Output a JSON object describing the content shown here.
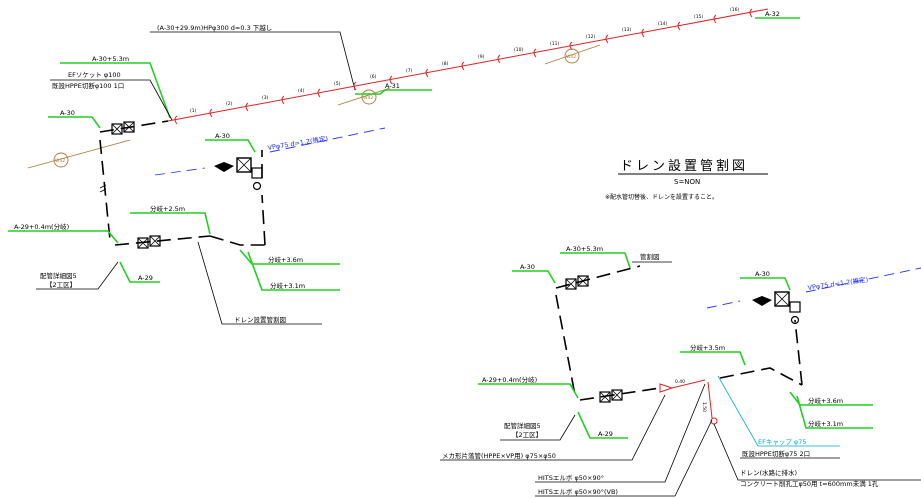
{
  "top_label": "(A-30+29.9m)HPφ300 d=0.3 下越し",
  "title": "ドレン設置管割図",
  "scale": "S=NON",
  "note": "※配水管切替後、ドレンを設置すること。",
  "main_pipe_numbers": [
    "(1)",
    "(2)",
    "(3)",
    "(4)",
    "(5)",
    "(6)",
    "(7)",
    "(8)",
    "(9)",
    "(10)",
    "(11)",
    "(12)",
    "(13)",
    "(14)",
    "(15)",
    "(16)"
  ],
  "W42": "W42",
  "left": {
    "a30_53": "A-30+5.3m",
    "ef_socket": "EFソケット φ100",
    "cut": "既設HPPE切断φ100 1口",
    "a30": "A-30",
    "a31": "A-31",
    "a32": "A-32",
    "a30_b": "A-30",
    "vp75": "VPφ75 d=1.2(推定)",
    "a29_04": "A-29+0.4m(分岐)",
    "bunki_25": "分岐+2.5m",
    "bunki_36": "分岐+3.6m",
    "bunki_31": "分岐+3.1m",
    "pipe_detail": "配管詳細図5",
    "koku": "【2工区】",
    "a29": "A-29",
    "drain_ref": "ドレン設置管割図"
  },
  "right": {
    "a30_53": "A-30+5.3m",
    "kanwari": "管割図",
    "a30": "A-30",
    "a30_b": "A-30",
    "vp75": "VPφ75 d=1.2(推定)",
    "bunki_35": "分岐+3.5m",
    "a29_04": "A-29+0.4m(分岐)",
    "d040": "0.40",
    "d150": "1.50",
    "bunki_36": "分岐+3.6m",
    "bunki_31": "分岐+3.1m",
    "pipe_detail": "配管詳細図5",
    "koku": "【2工区】",
    "a29": "A-29",
    "mechanical": "メカ形片落管(HPPE×VP用) φ75×φ50",
    "ef_cap": "EFキャップ φ75",
    "cut75": "既設HPPE切断φ75 2口",
    "hits1": "HITSエルボ φ50×90°",
    "drain_water": "ドレン(水路に排水)",
    "concrete": "コンクリート削孔工φ50用 t=600mm未満 1孔",
    "hits2": "HITSエルボ φ50×90°(VB)"
  }
}
